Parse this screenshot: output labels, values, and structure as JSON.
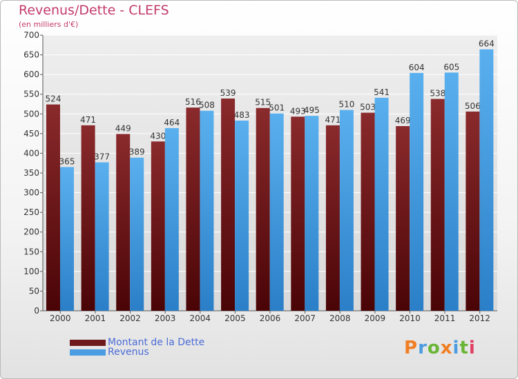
{
  "header": {
    "title": "Revenus/Dette - CLEFS",
    "subtitle": "(en milliers d'€)"
  },
  "legend": {
    "items": [
      {
        "label": "Montant de la Dette",
        "color": "#6e1a1d"
      },
      {
        "label": "Revenus",
        "color": "#4a9de0"
      }
    ]
  },
  "logo": {
    "letters": [
      "P",
      "r",
      "o",
      "x",
      "i",
      "t",
      "i"
    ],
    "colors": [
      "#f07e23",
      "#4b9be0",
      "#69b536",
      "#f07e23",
      "#4b9be0",
      "#69b536",
      "#e03f64"
    ]
  },
  "chart_data": {
    "type": "bar",
    "categories": [
      "2000",
      "2001",
      "2002",
      "2003",
      "2004",
      "2005",
      "2006",
      "2007",
      "2008",
      "2009",
      "2010",
      "2011",
      "2012"
    ],
    "series": [
      {
        "name": "Montant de la Dette",
        "color": "#6e1a1d",
        "values": [
          524,
          471,
          449,
          430,
          516,
          539,
          515,
          493,
          471,
          503,
          469,
          538,
          506
        ]
      },
      {
        "name": "Revenus",
        "color": "#4a9de0",
        "values": [
          365,
          377,
          389,
          464,
          508,
          483,
          501,
          495,
          510,
          541,
          604,
          605,
          664
        ]
      }
    ],
    "ylim": [
      0,
      700
    ],
    "yticks": [
      0,
      50,
      100,
      150,
      200,
      250,
      300,
      350,
      400,
      450,
      500,
      550,
      600,
      650,
      700
    ],
    "grid": true,
    "legend_position": "bottom-left"
  }
}
